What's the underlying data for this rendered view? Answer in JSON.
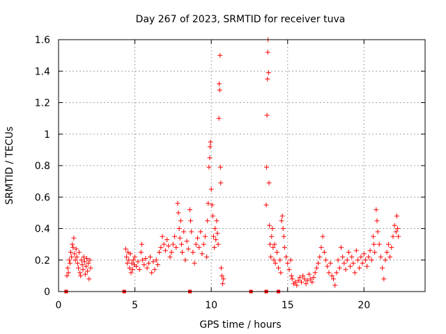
{
  "chart_data": {
    "type": "scatter",
    "title": "Day 267 of 2023, SRMTID for receiver tuva",
    "xlabel": "GPS time / hours",
    "ylabel": "SRMTID / TECUs",
    "xlim": [
      0,
      24
    ],
    "ylim": [
      0,
      1.6
    ],
    "xticks": [
      0,
      5,
      10,
      15,
      20
    ],
    "xtick_labels": [
      "0",
      "5",
      "10",
      "15",
      "20"
    ],
    "yticks": [
      0,
      0.2,
      0.4,
      0.6,
      0.8,
      1.0,
      1.2,
      1.4,
      1.6
    ],
    "ytick_labels": [
      "0",
      "0.2",
      "0.4",
      "0.6",
      "0.8",
      "1",
      "1.2",
      "1.4",
      "1.6"
    ],
    "grid": true,
    "marker": "+",
    "color": "#ff0000",
    "zero_markers_x": [
      0.5,
      4.3,
      8.6,
      12.6,
      13.6,
      14.4
    ],
    "series": [
      {
        "name": "SRMTID",
        "points": [
          [
            0.55,
            0.1
          ],
          [
            0.6,
            0.15
          ],
          [
            0.65,
            0.12
          ],
          [
            0.7,
            0.2
          ],
          [
            0.75,
            0.18
          ],
          [
            0.8,
            0.25
          ],
          [
            0.85,
            0.22
          ],
          [
            0.9,
            0.3
          ],
          [
            0.95,
            0.28
          ],
          [
            1.0,
            0.34
          ],
          [
            1.05,
            0.24
          ],
          [
            1.1,
            0.2
          ],
          [
            1.15,
            0.27
          ],
          [
            1.2,
            0.22
          ],
          [
            1.25,
            0.18
          ],
          [
            1.3,
            0.15
          ],
          [
            1.35,
            0.25
          ],
          [
            1.4,
            0.12
          ],
          [
            1.45,
            0.1
          ],
          [
            1.5,
            0.2
          ],
          [
            1.55,
            0.17
          ],
          [
            1.6,
            0.14
          ],
          [
            1.65,
            0.22
          ],
          [
            1.7,
            0.19
          ],
          [
            1.75,
            0.11
          ],
          [
            1.8,
            0.16
          ],
          [
            1.85,
            0.21
          ],
          [
            1.9,
            0.13
          ],
          [
            1.95,
            0.18
          ],
          [
            2.0,
            0.08
          ],
          [
            2.05,
            0.2
          ],
          [
            2.1,
            0.15
          ],
          [
            4.4,
            0.27
          ],
          [
            4.45,
            0.22
          ],
          [
            4.5,
            0.18
          ],
          [
            4.55,
            0.25
          ],
          [
            4.6,
            0.2
          ],
          [
            4.65,
            0.15
          ],
          [
            4.7,
            0.24
          ],
          [
            4.75,
            0.12
          ],
          [
            4.8,
            0.18
          ],
          [
            4.85,
            0.14
          ],
          [
            4.9,
            0.2
          ],
          [
            4.95,
            0.17
          ],
          [
            5.0,
            0.22
          ],
          [
            5.1,
            0.16
          ],
          [
            5.2,
            0.19
          ],
          [
            5.3,
            0.14
          ],
          [
            5.4,
            0.25
          ],
          [
            5.45,
            0.3
          ],
          [
            5.5,
            0.2
          ],
          [
            5.6,
            0.17
          ],
          [
            5.7,
            0.21
          ],
          [
            5.8,
            0.15
          ],
          [
            5.9,
            0.18
          ],
          [
            6.0,
            0.22
          ],
          [
            6.1,
            0.12
          ],
          [
            6.2,
            0.19
          ],
          [
            6.3,
            0.14
          ],
          [
            6.4,
            0.2
          ],
          [
            6.5,
            0.17
          ],
          [
            6.6,
            0.25
          ],
          [
            6.7,
            0.28
          ],
          [
            6.8,
            0.35
          ],
          [
            6.9,
            0.3
          ],
          [
            7.0,
            0.26
          ],
          [
            7.1,
            0.33
          ],
          [
            7.2,
            0.29
          ],
          [
            7.3,
            0.22
          ],
          [
            7.4,
            0.25
          ],
          [
            7.5,
            0.3
          ],
          [
            7.6,
            0.35
          ],
          [
            7.7,
            0.28
          ],
          [
            7.8,
            0.56
          ],
          [
            7.85,
            0.5
          ],
          [
            7.9,
            0.4
          ],
          [
            7.95,
            0.34
          ],
          [
            8.0,
            0.45
          ],
          [
            8.05,
            0.3
          ],
          [
            8.1,
            0.25
          ],
          [
            8.2,
            0.38
          ],
          [
            8.3,
            0.2
          ],
          [
            8.4,
            0.32
          ],
          [
            8.5,
            0.27
          ],
          [
            8.6,
            0.52
          ],
          [
            8.65,
            0.45
          ],
          [
            8.7,
            0.38
          ],
          [
            8.8,
            0.25
          ],
          [
            8.9,
            0.18
          ],
          [
            9.0,
            0.3
          ],
          [
            9.1,
            0.34
          ],
          [
            9.2,
            0.28
          ],
          [
            9.3,
            0.38
          ],
          [
            9.4,
            0.24
          ],
          [
            9.5,
            0.3
          ],
          [
            9.6,
            0.35
          ],
          [
            9.7,
            0.22
          ],
          [
            9.75,
            0.45
          ],
          [
            9.8,
            0.56
          ],
          [
            9.85,
            0.79
          ],
          [
            9.9,
            0.85
          ],
          [
            9.92,
            0.92
          ],
          [
            9.95,
            0.95
          ],
          [
            10.0,
            0.65
          ],
          [
            10.05,
            0.55
          ],
          [
            10.1,
            0.48
          ],
          [
            10.15,
            0.35
          ],
          [
            10.2,
            0.28
          ],
          [
            10.25,
            0.4
          ],
          [
            10.3,
            0.33
          ],
          [
            10.35,
            0.45
          ],
          [
            10.4,
            0.37
          ],
          [
            10.45,
            0.3
          ],
          [
            10.5,
            1.1
          ],
          [
            10.52,
            1.32
          ],
          [
            10.55,
            1.28
          ],
          [
            10.57,
            1.5
          ],
          [
            10.6,
            0.79
          ],
          [
            10.62,
            0.69
          ],
          [
            10.65,
            0.15
          ],
          [
            10.7,
            0.1
          ],
          [
            10.75,
            0.05
          ],
          [
            10.8,
            0.08
          ],
          [
            13.6,
            0.55
          ],
          [
            13.62,
            0.79
          ],
          [
            13.65,
            1.12
          ],
          [
            13.68,
            1.35
          ],
          [
            13.7,
            1.52
          ],
          [
            13.72,
            1.6
          ],
          [
            13.75,
            1.39
          ],
          [
            13.78,
            0.69
          ],
          [
            13.8,
            0.42
          ],
          [
            13.85,
            0.3
          ],
          [
            13.9,
            0.22
          ],
          [
            13.95,
            0.35
          ],
          [
            14.0,
            0.4
          ],
          [
            14.05,
            0.28
          ],
          [
            14.1,
            0.2
          ],
          [
            14.15,
            0.3
          ],
          [
            14.2,
            0.18
          ],
          [
            14.3,
            0.25
          ],
          [
            14.4,
            0.15
          ],
          [
            14.5,
            0.2
          ],
          [
            14.55,
            0.12
          ],
          [
            14.6,
            0.45
          ],
          [
            14.65,
            0.48
          ],
          [
            14.7,
            0.4
          ],
          [
            14.75,
            0.35
          ],
          [
            14.8,
            0.28
          ],
          [
            14.9,
            0.22
          ],
          [
            15.0,
            0.18
          ],
          [
            15.1,
            0.14
          ],
          [
            15.2,
            0.2
          ],
          [
            15.25,
            0.1
          ],
          [
            15.3,
            0.08
          ],
          [
            15.4,
            0.05
          ],
          [
            15.5,
            0.06
          ],
          [
            15.6,
            0.04
          ],
          [
            15.7,
            0.07
          ],
          [
            15.8,
            0.09
          ],
          [
            15.9,
            0.06
          ],
          [
            16.0,
            0.1
          ],
          [
            16.1,
            0.08
          ],
          [
            16.2,
            0.05
          ],
          [
            16.3,
            0.07
          ],
          [
            16.4,
            0.11
          ],
          [
            16.5,
            0.08
          ],
          [
            16.6,
            0.06
          ],
          [
            16.7,
            0.09
          ],
          [
            16.8,
            0.12
          ],
          [
            16.9,
            0.15
          ],
          [
            17.0,
            0.18
          ],
          [
            17.1,
            0.22
          ],
          [
            17.2,
            0.28
          ],
          [
            17.3,
            0.35
          ],
          [
            17.4,
            0.25
          ],
          [
            17.5,
            0.2
          ],
          [
            17.6,
            0.16
          ],
          [
            17.7,
            0.12
          ],
          [
            17.8,
            0.18
          ],
          [
            17.9,
            0.1
          ],
          [
            18.0,
            0.08
          ],
          [
            18.1,
            0.04
          ],
          [
            18.2,
            0.12
          ],
          [
            18.3,
            0.2
          ],
          [
            18.4,
            0.15
          ],
          [
            18.5,
            0.28
          ],
          [
            18.6,
            0.22
          ],
          [
            18.7,
            0.18
          ],
          [
            18.8,
            0.14
          ],
          [
            18.9,
            0.2
          ],
          [
            19.0,
            0.25
          ],
          [
            19.1,
            0.16
          ],
          [
            19.2,
            0.22
          ],
          [
            19.3,
            0.18
          ],
          [
            19.4,
            0.12
          ],
          [
            19.5,
            0.26
          ],
          [
            19.6,
            0.2
          ],
          [
            19.7,
            0.15
          ],
          [
            19.8,
            0.22
          ],
          [
            19.9,
            0.18
          ],
          [
            20.0,
            0.24
          ],
          [
            20.1,
            0.2
          ],
          [
            20.2,
            0.16
          ],
          [
            20.3,
            0.22
          ],
          [
            20.4,
            0.26
          ],
          [
            20.5,
            0.2
          ],
          [
            20.6,
            0.35
          ],
          [
            20.65,
            0.3
          ],
          [
            20.7,
            0.25
          ],
          [
            20.8,
            0.52
          ],
          [
            20.85,
            0.45
          ],
          [
            20.9,
            0.38
          ],
          [
            21.0,
            0.3
          ],
          [
            21.1,
            0.22
          ],
          [
            21.2,
            0.15
          ],
          [
            21.3,
            0.08
          ],
          [
            21.4,
            0.2
          ],
          [
            21.5,
            0.25
          ],
          [
            21.6,
            0.3
          ],
          [
            21.7,
            0.22
          ],
          [
            21.8,
            0.28
          ],
          [
            21.9,
            0.35
          ],
          [
            22.0,
            0.42
          ],
          [
            22.1,
            0.38
          ],
          [
            22.15,
            0.48
          ],
          [
            22.2,
            0.4
          ],
          [
            22.25,
            0.35
          ]
        ]
      }
    ]
  }
}
